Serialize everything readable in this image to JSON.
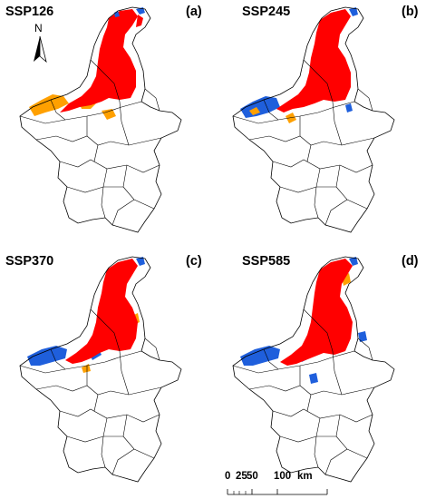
{
  "panels": [
    {
      "scenario": "SSP126",
      "label": "(a)"
    },
    {
      "scenario": "SSP245",
      "label": "(b)"
    },
    {
      "scenario": "SSP370",
      "label": "(c)"
    },
    {
      "scenario": "SSP585",
      "label": "(d)"
    }
  ],
  "north_arrow": {
    "letter": "N"
  },
  "scale_bar": {
    "ticks": [
      "0",
      "25",
      "50",
      "100"
    ],
    "unit": "km"
  },
  "colors": {
    "core": "#ff0000",
    "expansion": "#1f5fdc",
    "contraction": "#ffa000",
    "boundary": "#000000",
    "background": "#ffffff"
  }
}
